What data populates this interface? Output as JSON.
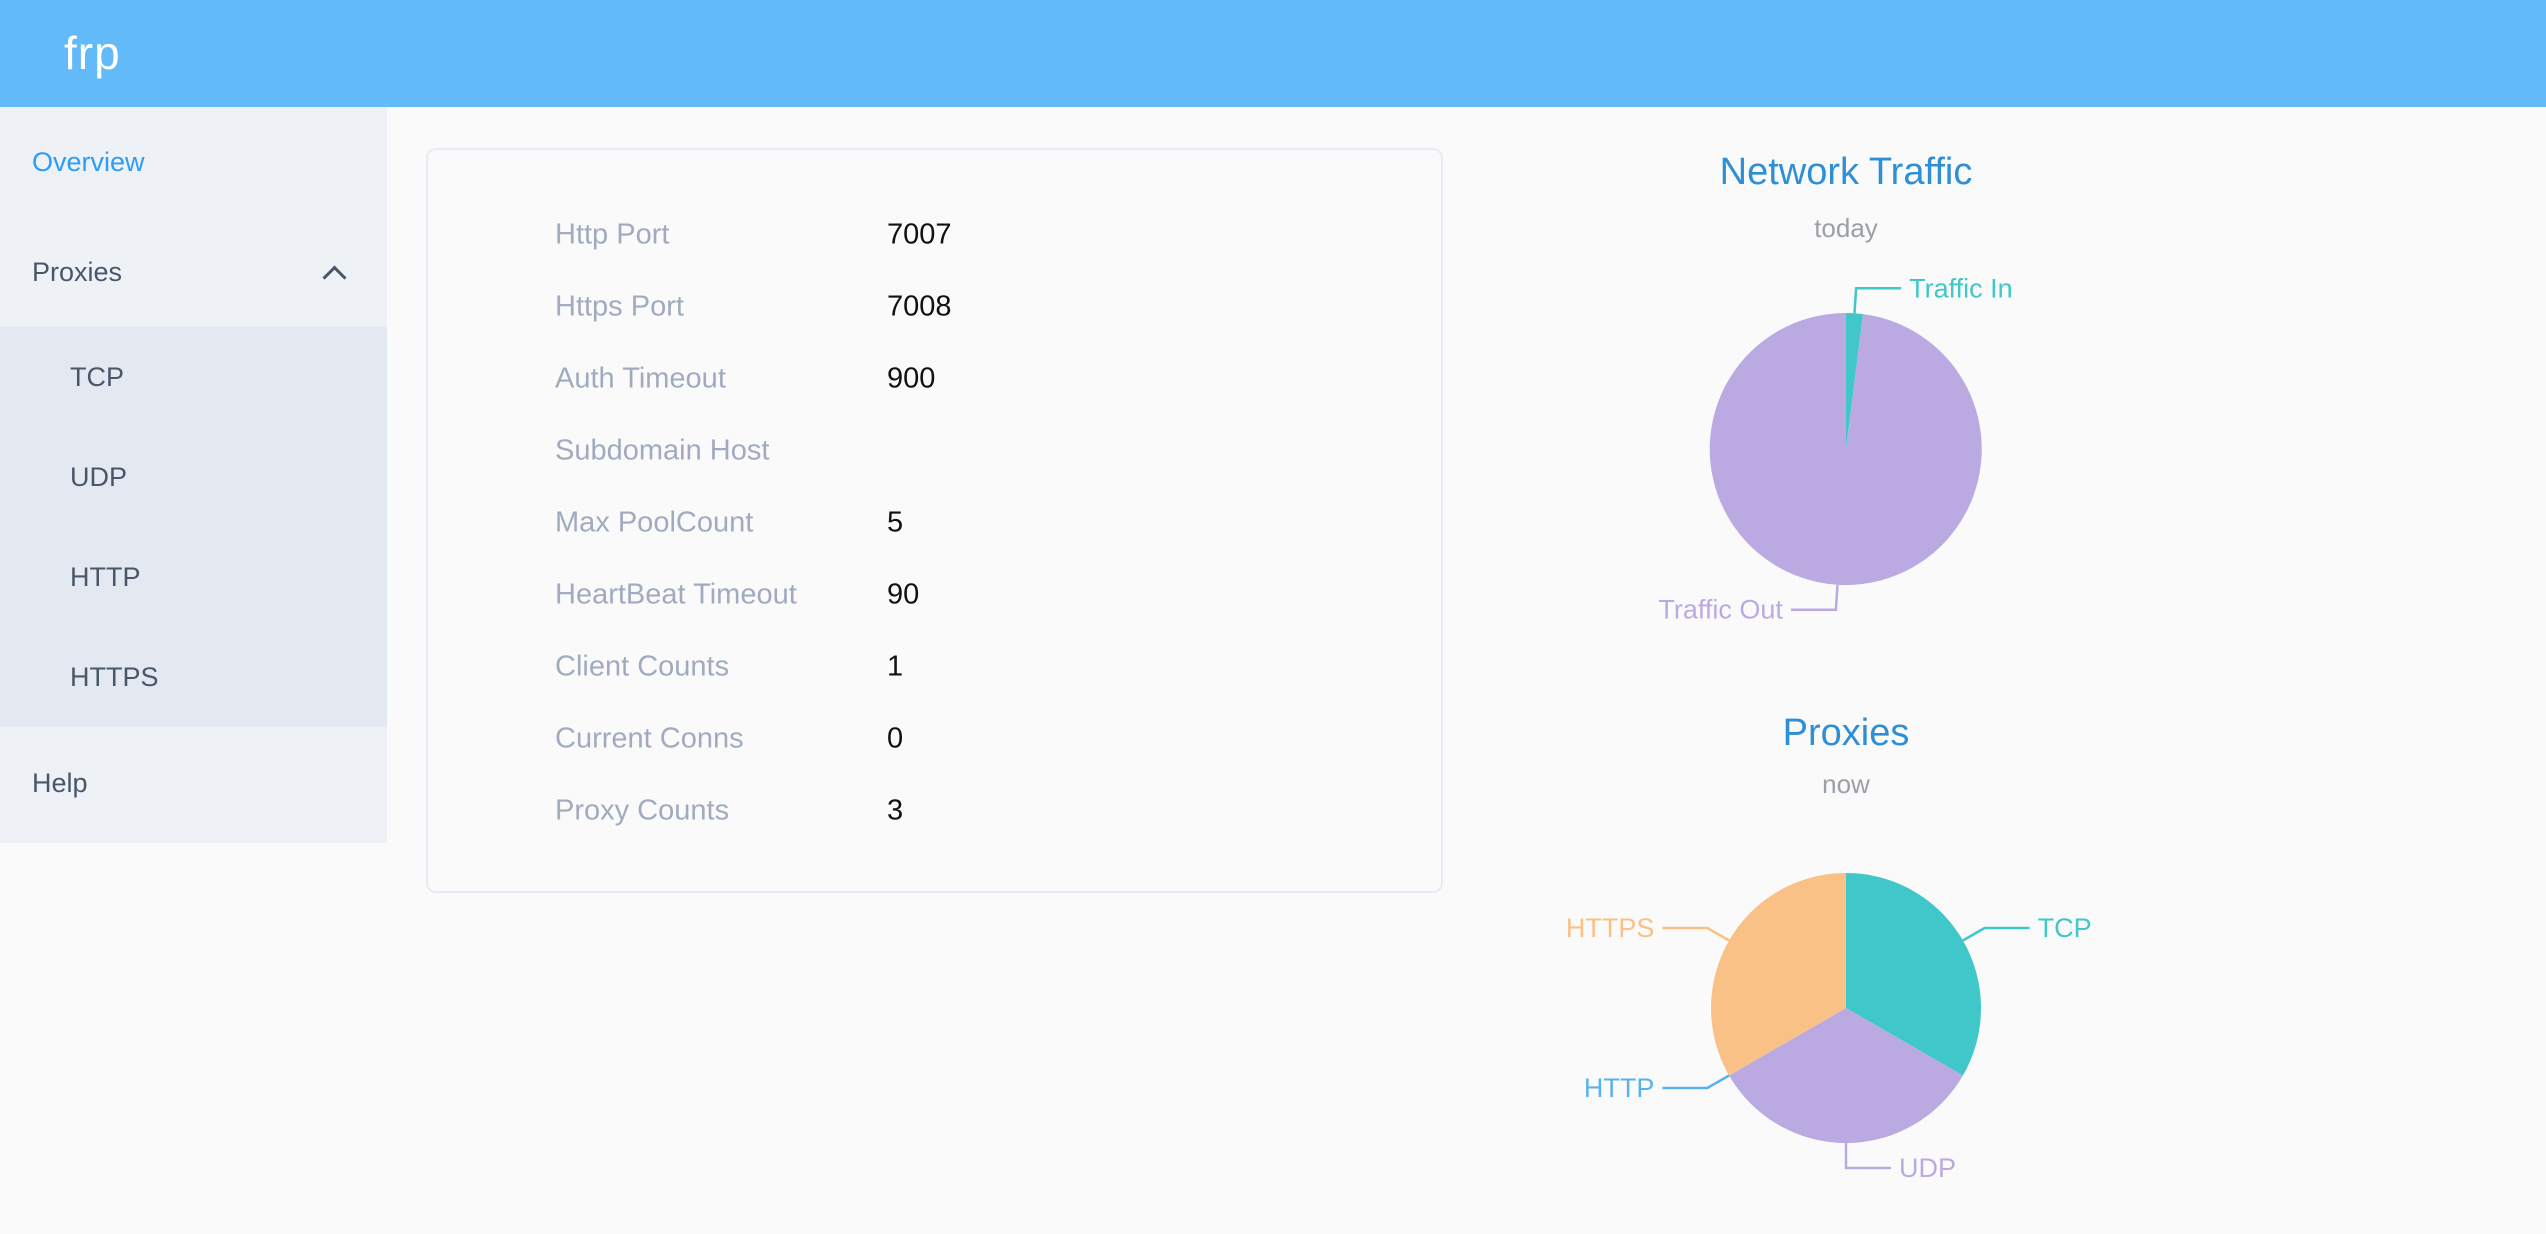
{
  "header": {
    "logo": "frp",
    "background_color": "#62baf8"
  },
  "sidebar": {
    "background_color": "#eef1f6",
    "submenu_background_color": "#e4e8f1",
    "active_color": "#2b9df8",
    "text_color": "#48576a",
    "items": [
      {
        "label": "Overview",
        "active": true
      },
      {
        "label": "Proxies",
        "expanded": true,
        "children": [
          {
            "label": "TCP"
          },
          {
            "label": "UDP"
          },
          {
            "label": "HTTP"
          },
          {
            "label": "HTTPS"
          }
        ]
      },
      {
        "label": "Help",
        "active": false
      }
    ]
  },
  "overview_table": {
    "rows": [
      {
        "label": "Http Port",
        "value": "7007"
      },
      {
        "label": "Https Port",
        "value": "7008"
      },
      {
        "label": "Auth Timeout",
        "value": "900"
      },
      {
        "label": "Subdomain Host",
        "value": ""
      },
      {
        "label": "Max PoolCount",
        "value": "5"
      },
      {
        "label": "HeartBeat Timeout",
        "value": "90"
      },
      {
        "label": "Client Counts",
        "value": "1"
      },
      {
        "label": "Current Conns",
        "value": "0"
      },
      {
        "label": "Proxy Counts",
        "value": "3"
      }
    ]
  },
  "chart_data": [
    {
      "type": "pie",
      "title": "Network Traffic",
      "subtitle": "today",
      "title_color": "#2e8fd6",
      "legend": "none",
      "labels": "outside-with-leader-lines",
      "start_angle_deg": 0,
      "slices": [
        {
          "label": "Traffic In",
          "value": 2,
          "color": "#3fc7ca"
        },
        {
          "label": "Traffic Out",
          "value": 98,
          "color": "#bbaae2"
        }
      ],
      "value_note": "proportions estimated from arc angles (percent)"
    },
    {
      "type": "pie",
      "title": "Proxies",
      "subtitle": "now",
      "title_color": "#2e8fd6",
      "legend": "none",
      "labels": "outside-with-leader-lines",
      "start_angle_deg": 0,
      "slices": [
        {
          "label": "TCP",
          "value": 1,
          "color": "#3fc7ca"
        },
        {
          "label": "UDP",
          "value": 1,
          "color": "#bbaae2"
        },
        {
          "label": "HTTP",
          "value": 0,
          "color": "#5ab1ef"
        },
        {
          "label": "HTTPS",
          "value": 1,
          "color": "#fac186"
        }
      ],
      "value_note": "proxy counts per type; total matches Proxy Counts = 3"
    }
  ]
}
